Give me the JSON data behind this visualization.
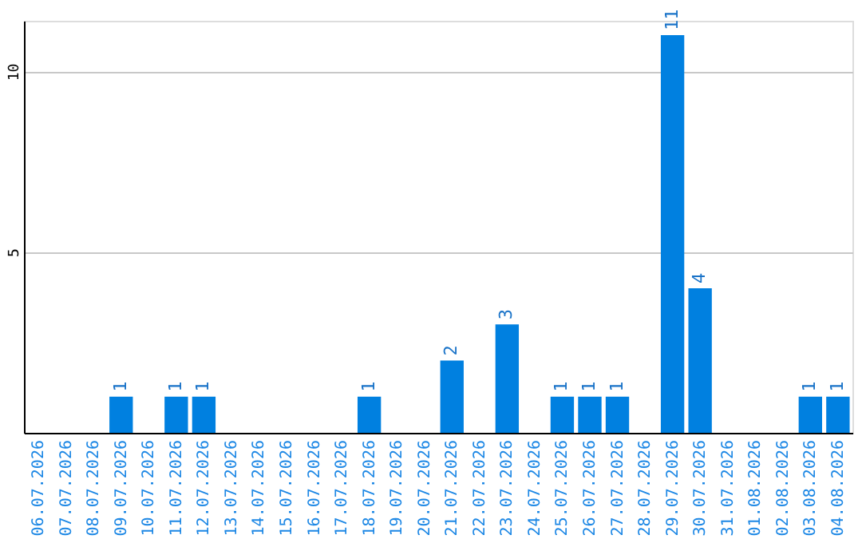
{
  "chart_data": {
    "type": "bar",
    "categories": [
      "06.07.2026",
      "07.07.2026",
      "08.07.2026",
      "09.07.2026",
      "10.07.2026",
      "11.07.2026",
      "12.07.2026",
      "13.07.2026",
      "14.07.2026",
      "15.07.2026",
      "16.07.2026",
      "17.07.2026",
      "18.07.2026",
      "19.07.2026",
      "20.07.2026",
      "21.07.2026",
      "22.07.2026",
      "23.07.2026",
      "24.07.2026",
      "25.07.2026",
      "26.07.2026",
      "27.07.2026",
      "28.07.2026",
      "29.07.2026",
      "30.07.2026",
      "31.07.2026",
      "01.08.2026",
      "02.08.2026",
      "03.08.2026",
      "04.08.2026"
    ],
    "series": [
      {
        "color": "#0080e0",
        "values": [
          0,
          0,
          0,
          1,
          0,
          1,
          1,
          0,
          0,
          0,
          0,
          0,
          1,
          0,
          0,
          2,
          0,
          3,
          0,
          1,
          1,
          1,
          0,
          11,
          4,
          0,
          0,
          0,
          1,
          1
        ],
        "value_labels": [
          null,
          null,
          null,
          "1",
          null,
          "1",
          "1",
          null,
          null,
          null,
          null,
          null,
          "1",
          null,
          null,
          "2",
          null,
          "3",
          null,
          "1",
          "1",
          "1",
          null,
          "11",
          "4",
          null,
          null,
          null,
          "1",
          "1"
        ]
      }
    ],
    "ylim": [
      0,
      11.4
    ],
    "yticks": [
      5,
      10
    ],
    "grid": "y",
    "legend": false
  }
}
